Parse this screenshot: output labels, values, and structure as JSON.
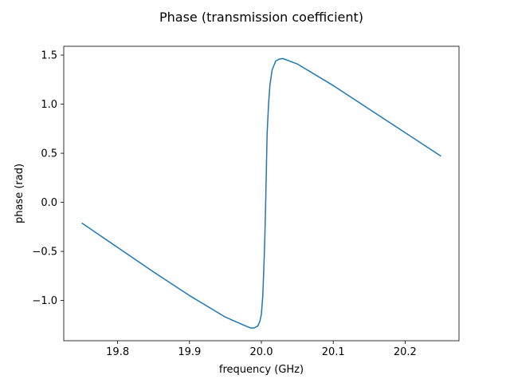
{
  "chart_data": {
    "type": "line",
    "title": "Phase (transmission coefficient)",
    "xlabel": "frequency (GHz)",
    "ylabel": "phase (rad)",
    "xlim": [
      19.725,
      20.275
    ],
    "ylim": [
      -1.41,
      1.59
    ],
    "grid": false,
    "x_ticks": [
      19.8,
      19.9,
      20.0,
      20.1,
      20.2
    ],
    "x_tick_labels": [
      "19.8",
      "19.9",
      "20.0",
      "20.1",
      "20.2"
    ],
    "y_ticks": [
      -1.0,
      -0.5,
      0.0,
      0.5,
      1.0,
      1.5
    ],
    "y_tick_labels": [
      "−1.0",
      "−0.5",
      "0.0",
      "0.5",
      "1.0",
      "1.5"
    ],
    "series": [
      {
        "color": "#1f77b4",
        "x": [
          19.75,
          19.8,
          19.85,
          19.9,
          19.95,
          19.975,
          19.985,
          19.99,
          19.995,
          19.998,
          20.0,
          20.002,
          20.004,
          20.005,
          20.006,
          20.007,
          20.008,
          20.01,
          20.012,
          20.015,
          20.02,
          20.025,
          20.03,
          20.05,
          20.1,
          20.15,
          20.2,
          20.25
        ],
        "y": [
          -0.21,
          -0.46,
          -0.71,
          -0.95,
          -1.17,
          -1.25,
          -1.28,
          -1.28,
          -1.26,
          -1.21,
          -1.14,
          -0.95,
          -0.55,
          -0.3,
          0.0,
          0.35,
          0.7,
          1.0,
          1.2,
          1.35,
          1.44,
          1.46,
          1.465,
          1.41,
          1.19,
          0.95,
          0.71,
          0.47
        ]
      }
    ]
  }
}
